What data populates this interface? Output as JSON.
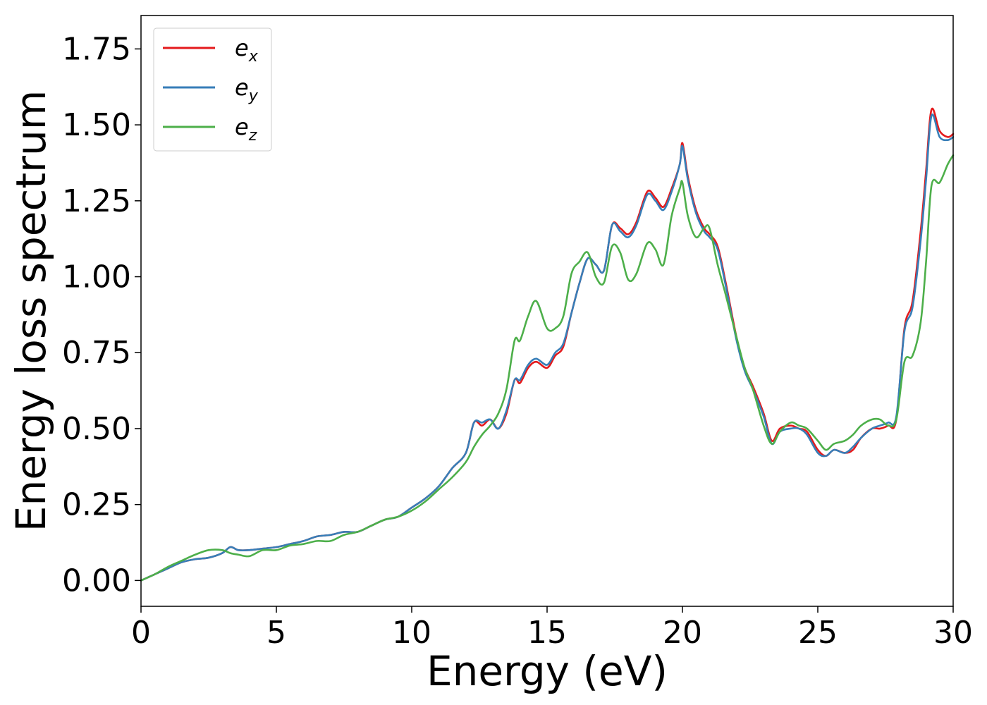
{
  "chart_data": {
    "type": "line",
    "xlabel": "Energy (eV)",
    "ylabel": "Energy loss spectrum",
    "xlim": [
      0,
      30
    ],
    "ylim": [
      -0.085,
      1.86
    ],
    "xticks": [
      0,
      5,
      10,
      15,
      20,
      25,
      30
    ],
    "xtick_labels": [
      "0",
      "5",
      "10",
      "15",
      "20",
      "25",
      "30"
    ],
    "yticks": [
      0.0,
      0.25,
      0.5,
      0.75,
      1.0,
      1.25,
      1.5,
      1.75
    ],
    "ytick_labels": [
      "0.00",
      "0.25",
      "0.50",
      "0.75",
      "1.00",
      "1.25",
      "1.50",
      "1.75"
    ],
    "grid": false,
    "legend_position": "top-left",
    "series": [
      {
        "name": "e",
        "subscript": "x",
        "color": "#e41a1c",
        "x": [
          0,
          0.5,
          1,
          1.5,
          2,
          2.5,
          3,
          3.3,
          3.6,
          4,
          4.5,
          5,
          5.5,
          6,
          6.5,
          7,
          7.5,
          8,
          8.5,
          9,
          9.5,
          10,
          10.5,
          11,
          11.5,
          12,
          12.3,
          12.6,
          12.9,
          13.2,
          13.5,
          13.8,
          14,
          14.3,
          14.6,
          15,
          15.3,
          15.6,
          15.9,
          16.2,
          16.5,
          16.8,
          17.1,
          17.4,
          17.7,
          18,
          18.3,
          18.7,
          19,
          19.3,
          19.6,
          19.9,
          20,
          20.2,
          20.5,
          20.8,
          21,
          21.3,
          21.6,
          22,
          22.3,
          22.6,
          23,
          23.3,
          23.6,
          24,
          24.3,
          24.6,
          25,
          25.3,
          25.6,
          26,
          26.3,
          26.6,
          27,
          27.3,
          27.6,
          27.9,
          28.2,
          28.5,
          28.8,
          29,
          29.2,
          29.5,
          29.8,
          30
        ],
        "y": [
          0.0,
          0.02,
          0.04,
          0.06,
          0.07,
          0.075,
          0.09,
          0.11,
          0.1,
          0.1,
          0.105,
          0.11,
          0.12,
          0.13,
          0.145,
          0.15,
          0.16,
          0.16,
          0.18,
          0.2,
          0.21,
          0.24,
          0.27,
          0.31,
          0.37,
          0.42,
          0.52,
          0.51,
          0.53,
          0.5,
          0.55,
          0.66,
          0.65,
          0.7,
          0.72,
          0.7,
          0.74,
          0.77,
          0.88,
          0.98,
          1.06,
          1.04,
          1.02,
          1.17,
          1.16,
          1.14,
          1.18,
          1.28,
          1.26,
          1.23,
          1.29,
          1.37,
          1.44,
          1.33,
          1.22,
          1.16,
          1.14,
          1.1,
          0.98,
          0.8,
          0.7,
          0.64,
          0.55,
          0.46,
          0.5,
          0.51,
          0.5,
          0.49,
          0.43,
          0.41,
          0.43,
          0.42,
          0.43,
          0.47,
          0.5,
          0.5,
          0.51,
          0.53,
          0.83,
          0.92,
          1.15,
          1.35,
          1.55,
          1.48,
          1.46,
          1.47
        ]
      },
      {
        "name": "e",
        "subscript": "y",
        "color": "#377eb8",
        "x": [
          0,
          0.5,
          1,
          1.5,
          2,
          2.5,
          3,
          3.3,
          3.6,
          4,
          4.5,
          5,
          5.5,
          6,
          6.5,
          7,
          7.5,
          8,
          8.5,
          9,
          9.5,
          10,
          10.5,
          11,
          11.5,
          12,
          12.3,
          12.6,
          12.9,
          13.2,
          13.5,
          13.8,
          14,
          14.3,
          14.6,
          15,
          15.3,
          15.6,
          15.9,
          16.2,
          16.5,
          16.8,
          17.1,
          17.4,
          17.7,
          18,
          18.3,
          18.7,
          19,
          19.3,
          19.6,
          19.9,
          20,
          20.2,
          20.5,
          20.8,
          21,
          21.3,
          21.6,
          22,
          22.3,
          22.6,
          23,
          23.3,
          23.6,
          24,
          24.3,
          24.6,
          25,
          25.3,
          25.6,
          26,
          26.3,
          26.6,
          27,
          27.3,
          27.6,
          27.9,
          28.2,
          28.5,
          28.8,
          29,
          29.2,
          29.5,
          29.8,
          30
        ],
        "y": [
          0.0,
          0.02,
          0.04,
          0.06,
          0.07,
          0.075,
          0.09,
          0.11,
          0.1,
          0.1,
          0.105,
          0.11,
          0.12,
          0.13,
          0.145,
          0.15,
          0.16,
          0.16,
          0.18,
          0.2,
          0.21,
          0.24,
          0.27,
          0.31,
          0.37,
          0.42,
          0.52,
          0.52,
          0.53,
          0.5,
          0.56,
          0.66,
          0.66,
          0.71,
          0.73,
          0.71,
          0.75,
          0.78,
          0.88,
          0.98,
          1.06,
          1.04,
          1.02,
          1.17,
          1.15,
          1.13,
          1.17,
          1.27,
          1.25,
          1.22,
          1.28,
          1.37,
          1.43,
          1.32,
          1.21,
          1.15,
          1.13,
          1.09,
          0.97,
          0.79,
          0.69,
          0.63,
          0.54,
          0.45,
          0.49,
          0.5,
          0.5,
          0.48,
          0.42,
          0.41,
          0.43,
          0.42,
          0.44,
          0.47,
          0.5,
          0.51,
          0.52,
          0.54,
          0.82,
          0.9,
          1.12,
          1.32,
          1.53,
          1.46,
          1.45,
          1.46
        ]
      },
      {
        "name": "e",
        "subscript": "z",
        "color": "#4daf4a",
        "x": [
          0,
          0.5,
          1,
          1.5,
          2,
          2.5,
          3,
          3.3,
          3.6,
          4,
          4.5,
          5,
          5.5,
          6,
          6.5,
          7,
          7.5,
          8,
          8.5,
          9,
          9.5,
          10,
          10.5,
          11,
          11.5,
          12,
          12.3,
          12.6,
          12.9,
          13.2,
          13.5,
          13.8,
          14,
          14.3,
          14.6,
          15,
          15.3,
          15.6,
          15.9,
          16.2,
          16.5,
          16.8,
          17.1,
          17.4,
          17.7,
          18,
          18.3,
          18.7,
          19,
          19.3,
          19.6,
          19.9,
          20,
          20.2,
          20.5,
          20.8,
          21,
          21.3,
          21.6,
          22,
          22.3,
          22.6,
          23,
          23.3,
          23.6,
          24,
          24.3,
          24.6,
          25,
          25.3,
          25.6,
          26,
          26.3,
          26.6,
          27,
          27.3,
          27.6,
          27.9,
          28.2,
          28.5,
          28.8,
          29,
          29.2,
          29.5,
          29.8,
          30
        ],
        "y": [
          0.0,
          0.02,
          0.045,
          0.065,
          0.085,
          0.1,
          0.1,
          0.09,
          0.085,
          0.08,
          0.1,
          0.1,
          0.115,
          0.12,
          0.13,
          0.13,
          0.15,
          0.16,
          0.18,
          0.2,
          0.21,
          0.23,
          0.26,
          0.3,
          0.34,
          0.39,
          0.44,
          0.48,
          0.51,
          0.55,
          0.63,
          0.79,
          0.79,
          0.87,
          0.92,
          0.83,
          0.83,
          0.87,
          1.01,
          1.05,
          1.08,
          1.0,
          0.98,
          1.1,
          1.08,
          0.99,
          1.01,
          1.11,
          1.09,
          1.04,
          1.2,
          1.29,
          1.31,
          1.2,
          1.13,
          1.16,
          1.16,
          1.04,
          0.94,
          0.8,
          0.7,
          0.63,
          0.51,
          0.45,
          0.49,
          0.52,
          0.51,
          0.5,
          0.46,
          0.43,
          0.45,
          0.46,
          0.48,
          0.51,
          0.53,
          0.53,
          0.51,
          0.53,
          0.72,
          0.74,
          0.85,
          1.05,
          1.3,
          1.31,
          1.37,
          1.4
        ]
      }
    ]
  }
}
